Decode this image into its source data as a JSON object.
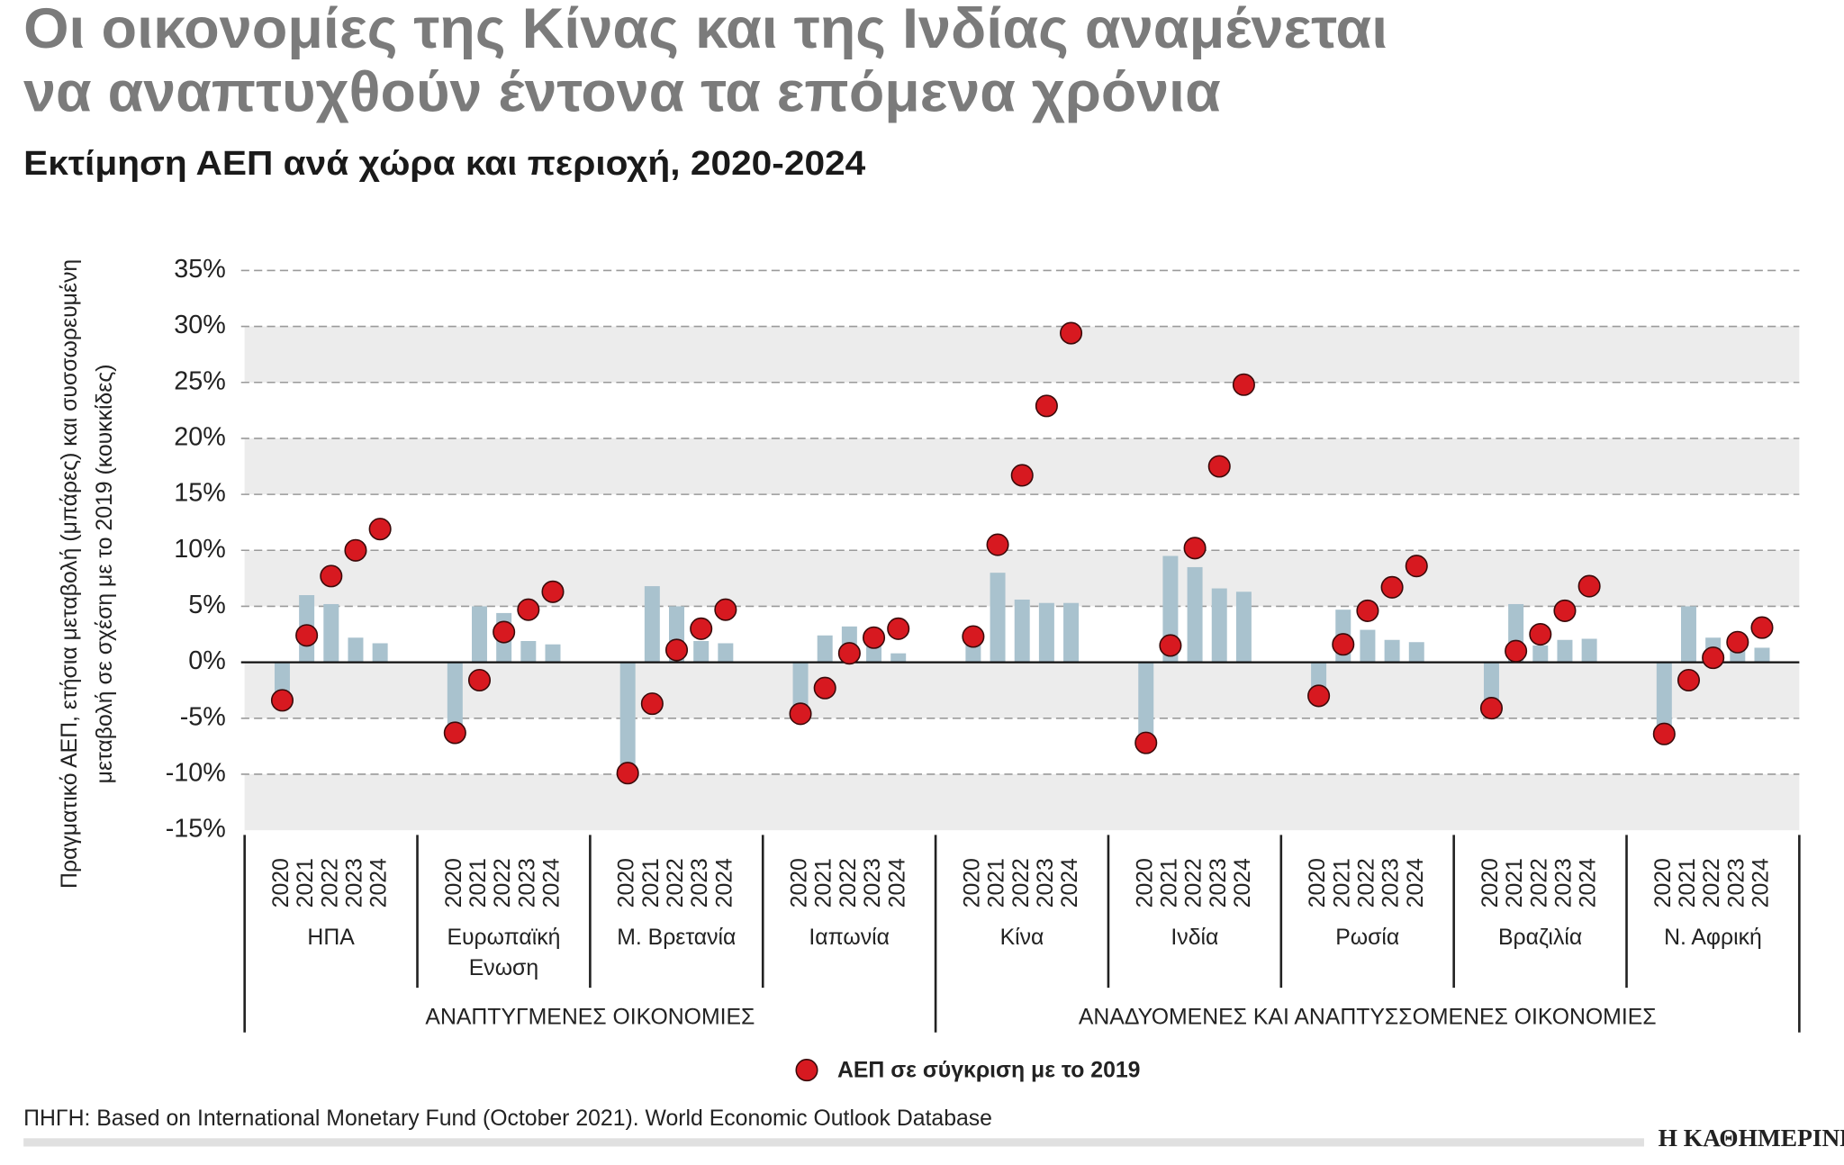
{
  "chart_data": {
    "type": "bar_dot",
    "title": [
      "Οι οικονομίες της Κίνας και της Ινδίας αναμένεται",
      "να αναπτυχθούν έντονα τα επόμενα χρόνια"
    ],
    "subtitle": "Εκτίμηση ΑΕΠ ανά χώρα και περιοχή, 2020-2024",
    "ylabel": [
      "Πραγματικό ΑΕΠ, ετήσια μεταβολή (μπάρες) και συσσωρευμένη",
      "μεταβολή σε σχέση με το 2019 (κουκκίδες)"
    ],
    "ylim": [
      -15,
      35
    ],
    "yticks": [
      {
        "value": 35,
        "label": "35%"
      },
      {
        "value": 30,
        "label": "30%"
      },
      {
        "value": 25,
        "label": "25%"
      },
      {
        "value": 20,
        "label": "20%"
      },
      {
        "value": 15,
        "label": "15%"
      },
      {
        "value": 10,
        "label": "10%"
      },
      {
        "value": 5,
        "label": "5%"
      },
      {
        "value": 0,
        "label": "0%"
      },
      {
        "value": -5,
        "label": "-5%"
      },
      {
        "value": -10,
        "label": "-10%"
      },
      {
        "value": -15,
        "label": "-15%"
      }
    ],
    "grid": true,
    "years": [
      "2020",
      "2021",
      "2022",
      "2023",
      "2024"
    ],
    "bar_color": "#a9c2ce",
    "dot_color": "#d71920",
    "sections": [
      {
        "name": "ΑΝΑΠΤΥΓΜΕΝΕΣ ΟΙΚΟΝΟΜΙΕΣ",
        "countries": [
          {
            "name": [
              "ΗΠΑ"
            ],
            "bars": [
              -3.4,
              6.0,
              5.2,
              2.2,
              1.7
            ],
            "dots": [
              -3.4,
              2.4,
              7.7,
              10.0,
              11.9
            ]
          },
          {
            "name": [
              "Ευρωπαϊκή",
              "Ενωση"
            ],
            "bars": [
              -6.3,
              5.0,
              4.4,
              1.9,
              1.6
            ],
            "dots": [
              -6.3,
              -1.6,
              2.7,
              4.7,
              6.3
            ]
          },
          {
            "name": [
              "Μ. Βρετανία"
            ],
            "bars": [
              -9.8,
              6.8,
              5.0,
              1.9,
              1.7
            ],
            "dots": [
              -9.9,
              -3.7,
              1.1,
              3.0,
              4.7
            ]
          },
          {
            "name": [
              "Ιαπωνία"
            ],
            "bars": [
              -4.6,
              2.4,
              3.2,
              1.4,
              0.8
            ],
            "dots": [
              -4.6,
              -2.3,
              0.8,
              2.2,
              3.0
            ]
          }
        ]
      },
      {
        "name": "ΑΝΑΔΥΟΜΕΝΕΣ ΚΑΙ ΑΝΑΠΤΥΣΣΟΜΕΝΕΣ ΟΙΚΟΝΟΜΙΕΣ",
        "countries": [
          {
            "name": [
              "Κίνα"
            ],
            "bars": [
              2.3,
              8.0,
              5.6,
              5.3,
              5.3
            ],
            "dots": [
              2.3,
              10.5,
              16.7,
              22.9,
              29.4
            ]
          },
          {
            "name": [
              "Ινδία"
            ],
            "bars": [
              -7.3,
              9.5,
              8.5,
              6.6,
              6.3
            ],
            "dots": [
              -7.2,
              1.5,
              10.2,
              17.5,
              24.8
            ]
          },
          {
            "name": [
              "Ρωσία"
            ],
            "bars": [
              -3.0,
              4.7,
              2.9,
              2.0,
              1.8
            ],
            "dots": [
              -3.0,
              1.6,
              4.6,
              6.7,
              8.6
            ]
          },
          {
            "name": [
              "Βραζιλία"
            ],
            "bars": [
              -4.1,
              5.2,
              1.5,
              2.0,
              2.1
            ],
            "dots": [
              -4.1,
              1.0,
              2.5,
              4.6,
              6.8
            ]
          },
          {
            "name": [
              "Ν. Αφρική"
            ],
            "bars": [
              -6.4,
              5.0,
              2.2,
              1.4,
              1.3
            ],
            "dots": [
              -6.4,
              -1.6,
              0.4,
              1.8,
              3.1
            ]
          }
        ]
      }
    ],
    "legend": "ΑΕΠ σε σύγκριση με το 2019",
    "source": "ΠΗΓΗ: Based on International Monetary Fund (October 2021). World Economic Outlook Database",
    "brand": "Η ΚΑΘΗΜΕΡΙΝΗ"
  }
}
